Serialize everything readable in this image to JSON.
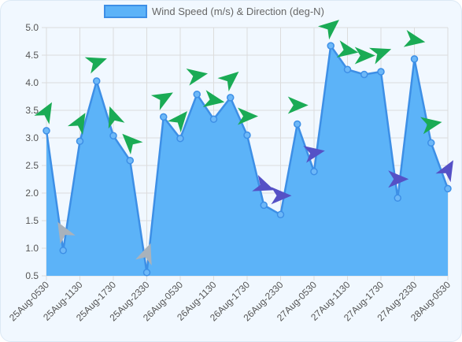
{
  "chart_data": {
    "type": "area",
    "legend": {
      "label": "Wind Speed (m/s) & Direction (deg-N)",
      "position": "top"
    },
    "grid": true,
    "ylim": [
      0.5,
      5.0
    ],
    "yticks": [
      "0.5",
      "1.0",
      "1.5",
      "2.0",
      "2.5",
      "3.0",
      "3.5",
      "4.0",
      "4.5",
      "5.0"
    ],
    "xticks": [
      "25Aug-0530",
      "25Aug-1130",
      "25Aug-1730",
      "25Aug-2330",
      "26Aug-0530",
      "26Aug-1130",
      "26Aug-1730",
      "26Aug-2330",
      "27Aug-0530",
      "27Aug-1130",
      "27Aug-1730",
      "27Aug-2330",
      "28Aug-0530"
    ],
    "series": [
      {
        "name": "Wind Speed (m/s) & Direction (deg-N)",
        "values": [
          3.13,
          0.96,
          2.94,
          4.03,
          3.04,
          2.59,
          0.56,
          3.38,
          2.99,
          3.79,
          3.34,
          3.73,
          3.05,
          1.78,
          1.61,
          3.25,
          2.39,
          4.67,
          4.24,
          4.15,
          4.2,
          1.91,
          4.43,
          2.91,
          2.08
        ],
        "direction_markers": [
          {
            "band": "moderate",
            "angle": -60
          },
          {
            "band": "calm",
            "angle": -120
          },
          {
            "band": "moderate",
            "angle": -60
          },
          {
            "band": "moderate",
            "angle": -20
          },
          {
            "band": "moderate",
            "angle": -110
          },
          {
            "band": "moderate",
            "angle": -135
          },
          {
            "band": "calm",
            "angle": -70
          },
          {
            "band": "moderate",
            "angle": -30
          },
          {
            "band": "moderate",
            "angle": -50
          },
          {
            "band": "moderate",
            "angle": -10
          },
          {
            "band": "moderate",
            "angle": 10
          },
          {
            "band": "moderate",
            "angle": -40
          },
          {
            "band": "moderate",
            "angle": 0
          },
          {
            "band": "light",
            "angle": 20
          },
          {
            "band": "light",
            "angle": 0
          },
          {
            "band": "moderate",
            "angle": 0
          },
          {
            "band": "light",
            "angle": -10
          },
          {
            "band": "moderate",
            "angle": -40
          },
          {
            "band": "moderate",
            "angle": 10
          },
          {
            "band": "moderate",
            "angle": 0
          },
          {
            "band": "moderate",
            "angle": -20
          },
          {
            "band": "light",
            "angle": 0
          },
          {
            "band": "moderate",
            "angle": 10
          },
          {
            "band": "moderate",
            "angle": -10
          },
          {
            "band": "light",
            "angle": -60
          }
        ]
      }
    ]
  },
  "colors": {
    "fill": "#5cb3f8",
    "line": "#3d8fe6",
    "point_fill": "#6db8f8",
    "grid": "#dcdcdc",
    "marker_moderate": "#1aab55",
    "marker_light": "#5551c6",
    "marker_calm": "#a9b2bb"
  }
}
